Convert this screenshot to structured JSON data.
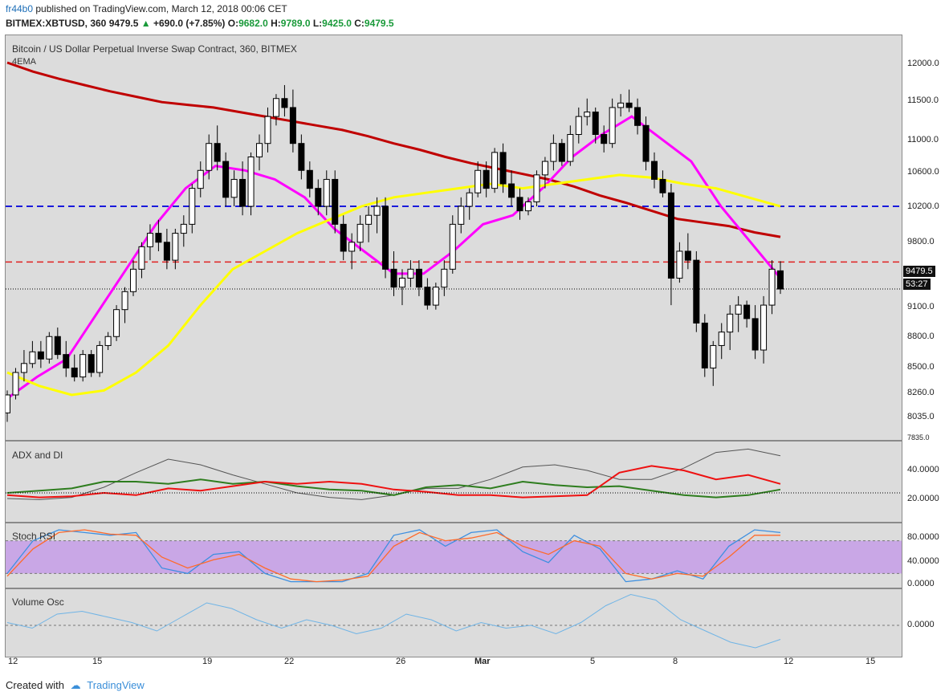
{
  "header": {
    "user": "fr44b0",
    "published_text": "published on TradingView.com, March 12, 2018 00:06 CET",
    "ticker": "BITMEX:XBTUSD, 360",
    "price": "9479.5",
    "change": "+690.0 (+7.85%)",
    "o_label": "O:",
    "o_value": "9682.0",
    "h_label": "H:",
    "h_value": "9789.0",
    "l_label": "L:",
    "l_value": "9425.0",
    "c_label": "C:",
    "c_value": "9479.5"
  },
  "main_panel": {
    "title": "Bitcoin / US Dollar Perpetual Inverse Swap Contract, 360, BITMEX",
    "indicator": "4EMA",
    "price_tag": "9479.5",
    "time_tag": "53:27",
    "price_axis": [
      "12000.0",
      "11500.0",
      "11000.0",
      "10600.0",
      "10200.0",
      "9800.0",
      "9100.0",
      "8800.0",
      "8500.0",
      "8260.0",
      "8035.0",
      "7835.0"
    ]
  },
  "adx_panel": {
    "title": "ADX and DI",
    "axis": [
      "40.0000",
      "20.0000"
    ]
  },
  "stoch_panel": {
    "title": "Stoch RSI",
    "axis": [
      "80.0000",
      "40.0000",
      "0.0000"
    ]
  },
  "vol_panel": {
    "title": "Volume Osc",
    "axis": [
      "0.0000"
    ]
  },
  "x_axis": [
    "12",
    "15",
    "19",
    "22",
    "26",
    "Mar",
    "5",
    "8",
    "12",
    "15"
  ],
  "footer": {
    "created": "Created with",
    "brand": "TradingView"
  },
  "colors": {
    "ema_red": "#c00000",
    "ema_magenta": "#ff00ff",
    "ema_yellow": "#ffff00",
    "line_blue": "#1a1adc",
    "line_red": "#e02020",
    "di_plus": "#2e7d1e",
    "di_minus": "#ee1111",
    "adx": "#555555",
    "stoch_k": "#3d8fe0",
    "stoch_d": "#ff6a2a",
    "stoch_band": "#c9a7e6",
    "vol_osc": "#6fb4e6"
  },
  "chart_data": [
    {
      "type": "candlestick",
      "title": "Bitcoin / US Dollar Perpetual Inverse Swap Contract, 360, BITMEX",
      "ylim": [
        7835,
        12000
      ],
      "horizontal_lines": [
        10400,
        9780,
        9479.5
      ],
      "ohlc": [
        [
          8100,
          8350,
          8000,
          8300
        ],
        [
          8300,
          8600,
          8250,
          8550
        ],
        [
          8550,
          8800,
          8450,
          8650
        ],
        [
          8650,
          8900,
          8600,
          8780
        ],
        [
          8780,
          8900,
          8600,
          8700
        ],
        [
          8700,
          9000,
          8650,
          8950
        ],
        [
          8950,
          9050,
          8700,
          8750
        ],
        [
          8750,
          8900,
          8500,
          8600
        ],
        [
          8600,
          8750,
          8450,
          8500
        ],
        [
          8500,
          8800,
          8450,
          8750
        ],
        [
          8750,
          8800,
          8500,
          8550
        ],
        [
          8550,
          8900,
          8500,
          8850
        ],
        [
          8850,
          9000,
          8800,
          8950
        ],
        [
          8950,
          9300,
          8900,
          9250
        ],
        [
          9250,
          9500,
          9100,
          9450
        ],
        [
          9450,
          9800,
          9400,
          9700
        ],
        [
          9700,
          10000,
          9600,
          9950
        ],
        [
          9950,
          10200,
          9800,
          10100
        ],
        [
          10100,
          10250,
          9900,
          10000
        ],
        [
          10000,
          10150,
          9700,
          9800
        ],
        [
          9800,
          10150,
          9700,
          10100
        ],
        [
          10100,
          10300,
          9950,
          10200
        ],
        [
          10200,
          10650,
          10100,
          10600
        ],
        [
          10600,
          10900,
          10500,
          10800
        ],
        [
          10800,
          11200,
          10700,
          11100
        ],
        [
          11100,
          11300,
          10800,
          10900
        ],
        [
          10900,
          11000,
          10400,
          10500
        ],
        [
          10500,
          10800,
          10400,
          10700
        ],
        [
          10700,
          10900,
          10300,
          10400
        ],
        [
          10400,
          11000,
          10300,
          10950
        ],
        [
          10950,
          11200,
          10800,
          11100
        ],
        [
          11100,
          11500,
          11000,
          11400
        ],
        [
          11400,
          11650,
          11300,
          11600
        ],
        [
          11600,
          11750,
          11400,
          11500
        ],
        [
          11500,
          11700,
          11000,
          11100
        ],
        [
          11100,
          11200,
          10700,
          10800
        ],
        [
          10800,
          10900,
          10500,
          10600
        ],
        [
          10600,
          10700,
          10300,
          10400
        ],
        [
          10400,
          10800,
          10300,
          10700
        ],
        [
          10700,
          10800,
          10100,
          10200
        ],
        [
          10200,
          10300,
          9800,
          9900
        ],
        [
          9900,
          10100,
          9700,
          10000
        ],
        [
          10000,
          10300,
          9900,
          10200
        ],
        [
          10200,
          10400,
          10000,
          10300
        ],
        [
          10300,
          10500,
          10100,
          10400
        ],
        [
          10400,
          10500,
          9600,
          9700
        ],
        [
          9700,
          9900,
          9400,
          9500
        ],
        [
          9500,
          9700,
          9300,
          9600
        ],
        [
          9600,
          9800,
          9500,
          9700
        ],
        [
          9700,
          9800,
          9400,
          9500
        ],
        [
          9500,
          9600,
          9250,
          9300
        ],
        [
          9300,
          9550,
          9250,
          9500
        ],
        [
          9500,
          9800,
          9400,
          9700
        ],
        [
          9700,
          10300,
          9650,
          10200
        ],
        [
          10200,
          10500,
          10100,
          10400
        ],
        [
          10400,
          10600,
          10250,
          10550
        ],
        [
          10550,
          10900,
          10500,
          10800
        ],
        [
          10800,
          10900,
          10500,
          10600
        ],
        [
          10600,
          11050,
          10550,
          11000
        ],
        [
          11000,
          11100,
          10550,
          10650
        ],
        [
          10650,
          10800,
          10400,
          10500
        ],
        [
          10500,
          10600,
          10250,
          10350
        ],
        [
          10350,
          10500,
          10300,
          10450
        ],
        [
          10450,
          10800,
          10400,
          10750
        ],
        [
          10750,
          10950,
          10600,
          10900
        ],
        [
          10900,
          11200,
          10800,
          11100
        ],
        [
          11100,
          11150,
          10850,
          10900
        ],
        [
          10900,
          11300,
          10850,
          11200
        ],
        [
          11200,
          11500,
          11100,
          11400
        ],
        [
          11400,
          11600,
          11300,
          11450
        ],
        [
          11450,
          11500,
          11100,
          11200
        ],
        [
          11200,
          11300,
          11000,
          11100
        ],
        [
          11100,
          11600,
          11050,
          11500
        ],
        [
          11500,
          11650,
          11400,
          11550
        ],
        [
          11550,
          11700,
          11450,
          11500
        ],
        [
          11500,
          11600,
          11200,
          11300
        ],
        [
          11300,
          11400,
          10800,
          10900
        ],
        [
          10900,
          11000,
          10600,
          10700
        ],
        [
          10700,
          10800,
          10500,
          10550
        ],
        [
          10550,
          10650,
          9300,
          9600
        ],
        [
          9600,
          10000,
          9550,
          9900
        ],
        [
          9900,
          10100,
          9700,
          9800
        ],
        [
          9800,
          9900,
          9000,
          9100
        ],
        [
          9100,
          9200,
          8500,
          8600
        ],
        [
          8600,
          8900,
          8400,
          8850
        ],
        [
          8850,
          9100,
          8700,
          9000
        ],
        [
          9000,
          9300,
          8800,
          9200
        ],
        [
          9200,
          9400,
          9000,
          9300
        ],
        [
          9300,
          9350,
          9050,
          9150
        ],
        [
          9150,
          9300,
          8700,
          8800
        ],
        [
          8800,
          9400,
          8650,
          9300
        ],
        [
          9300,
          9800,
          9200,
          9700
        ],
        [
          9682,
          9789,
          9425,
          9479.5
        ]
      ],
      "series": [
        {
          "name": "EMA red",
          "values": [
            12000,
            11900,
            11820,
            11750,
            11680,
            11620,
            11560,
            11530,
            11500,
            11450,
            11400,
            11350,
            11300,
            11250,
            11180,
            11100,
            11030,
            10950,
            10880,
            10820,
            10760,
            10700,
            10620,
            10520,
            10440,
            10350,
            10260,
            10220,
            10180,
            10110,
            10060
          ]
        },
        {
          "name": "EMA magenta",
          "values": [
            8260,
            8500,
            8700,
            9200,
            9700,
            10200,
            10600,
            10850,
            10800,
            10700,
            10500,
            10150,
            9900,
            9650,
            9650,
            9900,
            10200,
            10300,
            10600,
            10950,
            11200,
            11400,
            11150,
            10900,
            10400,
            10000,
            9600
          ]
        },
        {
          "name": "EMA yellow",
          "values": [
            8550,
            8400,
            8300,
            8350,
            8550,
            8850,
            9300,
            9700,
            9900,
            10100,
            10250,
            10400,
            10500,
            10550,
            10600,
            10650,
            10600,
            10650,
            10700,
            10750,
            10720,
            10650,
            10600,
            10500,
            10400
          ]
        }
      ]
    },
    {
      "type": "line",
      "title": "ADX and DI",
      "ylim": [
        0,
        60
      ],
      "series": [
        {
          "name": "ADX",
          "values": [
            15,
            14,
            16,
            25,
            38,
            50,
            45,
            36,
            28,
            20,
            16,
            14,
            18,
            24,
            24,
            32,
            43,
            45,
            40,
            32,
            32,
            42,
            56,
            59,
            53
          ]
        },
        {
          "name": "DI+",
          "values": [
            20,
            22,
            24,
            30,
            30,
            28,
            32,
            28,
            30,
            26,
            23,
            22,
            18,
            25,
            27,
            24,
            30,
            27,
            25,
            26,
            22,
            18,
            16,
            18,
            23
          ]
        },
        {
          "name": "DI-",
          "values": [
            18,
            16,
            17,
            20,
            18,
            24,
            22,
            26,
            30,
            28,
            30,
            28,
            23,
            21,
            18,
            18,
            16,
            17,
            18,
            38,
            44,
            40,
            32,
            36,
            28
          ]
        }
      ]
    },
    {
      "type": "line",
      "title": "Stoch RSI",
      "ylim": [
        0,
        100
      ],
      "series": [
        {
          "name": "K",
          "values": [
            20,
            80,
            100,
            95,
            90,
            95,
            30,
            20,
            55,
            60,
            20,
            5,
            5,
            5,
            20,
            90,
            100,
            70,
            95,
            100,
            60,
            40,
            90,
            65,
            5,
            10,
            25,
            10,
            70,
            100,
            95
          ]
        },
        {
          "name": "D",
          "values": [
            15,
            65,
            95,
            100,
            92,
            90,
            50,
            30,
            45,
            55,
            30,
            10,
            5,
            8,
            15,
            70,
            95,
            80,
            85,
            95,
            70,
            55,
            80,
            70,
            20,
            10,
            20,
            15,
            50,
            90,
            90
          ]
        }
      ]
    },
    {
      "type": "line",
      "title": "Volume Osc",
      "series": [
        {
          "name": "Volume Osc",
          "values": [
            5,
            -5,
            20,
            25,
            15,
            5,
            -10,
            15,
            40,
            30,
            10,
            -5,
            10,
            0,
            -15,
            -5,
            20,
            10,
            -10,
            5,
            -5,
            0,
            -15,
            5,
            35,
            55,
            45,
            10,
            -10,
            -30,
            -40,
            -25
          ]
        }
      ]
    }
  ]
}
